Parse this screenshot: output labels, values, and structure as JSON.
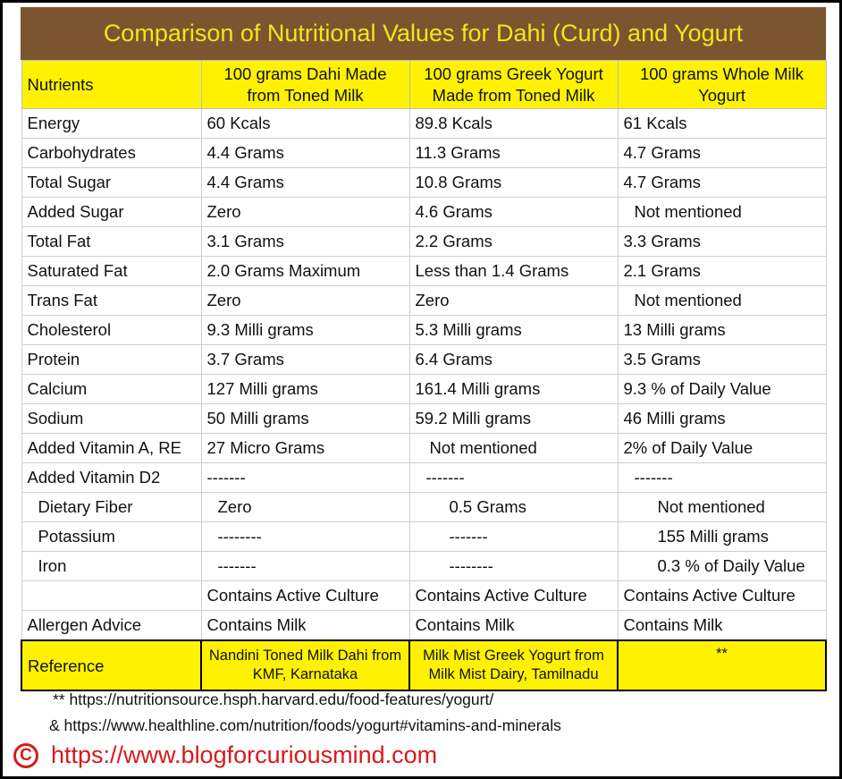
{
  "title": "Comparison of Nutritional Values for Dahi (Curd) and Yogurt",
  "table": {
    "headers": [
      "Nutrients",
      "100 grams Dahi Made from Toned Milk",
      "100 grams Greek Yogurt Made from Toned Milk",
      "100 grams Whole Milk Yogurt"
    ],
    "rows": [
      [
        "Energy",
        "60 Kcals",
        "89.8 Kcals",
        "61 Kcals"
      ],
      [
        "Carbohydrates",
        "4.4 Grams",
        "11.3 Grams",
        "4.7 Grams"
      ],
      [
        "Total Sugar",
        "4.4 Grams",
        "10.8 Grams",
        "4.7 Grams"
      ],
      [
        "Added Sugar",
        "Zero",
        "4.6 Grams",
        "Not mentioned"
      ],
      [
        "Total Fat",
        "3.1 Grams",
        "2.2 Grams",
        "3.3 Grams"
      ],
      [
        "Saturated Fat",
        "2.0 Grams Maximum",
        "Less than 1.4 Grams",
        "2.1 Grams"
      ],
      [
        "Trans Fat",
        "Zero",
        "Zero",
        "Not mentioned"
      ],
      [
        "Cholesterol",
        "9.3 Milli grams",
        "5.3 Milli grams",
        "13 Milli grams"
      ],
      [
        "Protein",
        "3.7 Grams",
        "6.4 Grams",
        "3.5 Grams"
      ],
      [
        "Calcium",
        "127 Milli grams",
        "161.4 Milli grams",
        "9.3 % of Daily Value"
      ],
      [
        "Sodium",
        "50 Milli grams",
        "59.2 Milli grams",
        "46 Milli grams"
      ],
      [
        "Added Vitamin A, RE",
        "27 Micro Grams",
        "Not mentioned",
        "2% of Daily Value"
      ],
      [
        "Added Vitamin D2",
        "-------",
        "-------",
        "-------"
      ],
      [
        "Dietary  Fiber",
        "Zero",
        "0.5 Grams",
        "Not mentioned"
      ],
      [
        "Potassium",
        "--------",
        "-------",
        "155 Milli grams"
      ],
      [
        "Iron",
        "-------",
        "--------",
        "0.3 % of Daily Value"
      ],
      [
        "",
        "Contains Active Culture",
        "Contains Active Culture",
        "Contains Active Culture"
      ],
      [
        "Allergen Advice",
        "Contains Milk",
        "Contains Milk",
        "Contains Milk"
      ]
    ],
    "reference": [
      "Reference",
      "Nandini Toned Milk Dahi from KMF, Karnataka",
      "Milk Mist Greek Yogurt from Milk Mist Dairy, Tamilnadu",
      "**"
    ]
  },
  "notes": [
    "** https://nutritionsource.hsph.harvard.edu/food-features/yogurt/",
    "& https://www.healthline.com/nutrition/foods/yogurt#vitamins-and-minerals"
  ],
  "footer": {
    "copyright_symbol": "C",
    "url": "https://www.blogforcuriousmind.com"
  },
  "colors": {
    "title_background": "#7a5530",
    "title_text": "#f5e51a",
    "header_highlight": "#fff200",
    "footer_text": "#d8191a"
  }
}
